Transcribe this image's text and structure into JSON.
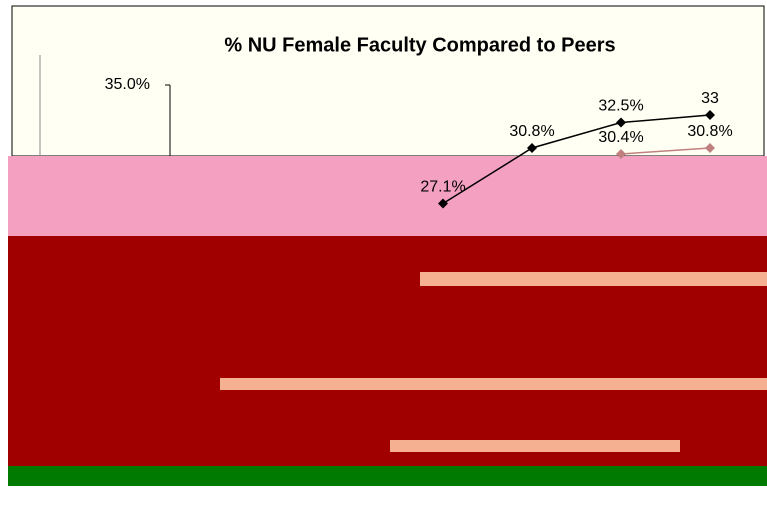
{
  "chart_data": {
    "type": "line",
    "title": "% NU Female Faculty Compared to Peers",
    "categories": [
      null,
      null,
      null,
      null,
      null,
      null
    ],
    "ylim": [
      15,
      35
    ],
    "yticks": [
      {
        "value": 35,
        "label": "35.0%"
      }
    ],
    "series": [
      {
        "color": "#000000",
        "values": [
          null,
          null,
          27.1,
          30.8,
          32.5,
          33
        ],
        "value_labels": [
          null,
          null,
          "27.1%",
          "30.8%",
          "32.5%",
          "33"
        ]
      },
      {
        "color": "#c08080",
        "values": [
          null,
          null,
          null,
          null,
          30.4,
          30.8
        ],
        "value_labels": [
          null,
          null,
          null,
          null,
          "30.4%",
          "30.8%"
        ]
      }
    ]
  }
}
